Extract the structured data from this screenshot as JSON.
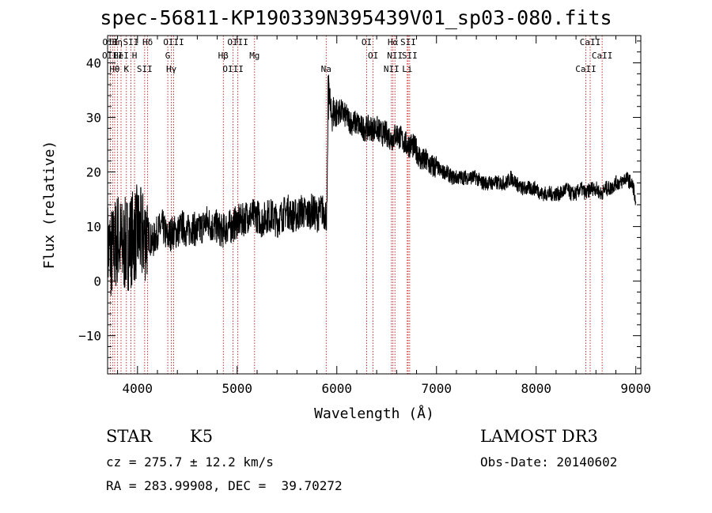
{
  "header": {
    "title": "spec-56811-KP190339N395439V01_sp03-080.fits"
  },
  "info": {
    "object_class": "STAR",
    "subclass": "K5",
    "survey": "LAMOST DR3",
    "cz": "cz = 275.7 ± 12.2 km/s",
    "obs_date": "Obs-Date: 20140602",
    "radec": "RA = 283.99908, DEC =  39.70272"
  },
  "colors": {
    "line": "#000000",
    "marker": "#c00000",
    "background": "#ffffff"
  },
  "chart_data": {
    "type": "line",
    "title": "spec-56811-KP190339N395439V01_sp03-080.fits",
    "xlabel": "Wavelength (Å)",
    "ylabel": "Flux (relative)",
    "xlim": [
      3700,
      9050
    ],
    "ylim": [
      -17,
      45
    ],
    "xticks": [
      4000,
      5000,
      6000,
      7000,
      8000,
      9000
    ],
    "yticks": [
      -10,
      0,
      10,
      20,
      30,
      40
    ],
    "tick_labels_x": [
      "4000",
      "5000",
      "6000",
      "7000",
      "8000",
      "9000"
    ],
    "tick_labels_y": [
      "−10",
      "0",
      "10",
      "20",
      "30",
      "40"
    ],
    "grid": false,
    "series": [
      {
        "x": [
          3700,
          3750,
          3800,
          3850,
          3900,
          3950,
          4000,
          4050,
          4100,
          4150,
          4200,
          4250,
          4300,
          4350,
          4400,
          4450,
          4500,
          4550,
          4600,
          4650,
          4700,
          4750,
          4800,
          4850,
          4900,
          4950,
          5000,
          5050,
          5100,
          5150,
          5200,
          5250,
          5300,
          5350,
          5400,
          5450,
          5500,
          5550,
          5600,
          5650,
          5700,
          5750,
          5800,
          5850,
          5900,
          5920,
          5940,
          5960,
          6000,
          6050,
          6100,
          6150,
          6200,
          6250,
          6300,
          6350,
          6400,
          6450,
          6500,
          6550,
          6600,
          6650,
          6700,
          6750,
          6800,
          6850,
          6900,
          6950,
          7000,
          7050,
          7100,
          7150,
          7200,
          7250,
          7300,
          7350,
          7400,
          7450,
          7500,
          7550,
          7600,
          7650,
          7700,
          7750,
          7800,
          7850,
          7900,
          7950,
          8000,
          8050,
          8100,
          8150,
          8200,
          8250,
          8300,
          8350,
          8400,
          8450,
          8500,
          8550,
          8600,
          8650,
          8700,
          8750,
          8800,
          8850,
          8900,
          8950,
          8980,
          9000
        ],
        "values": [
          6,
          5,
          8,
          6,
          7,
          8,
          9,
          8,
          9,
          7,
          9,
          10,
          8,
          9,
          9,
          10,
          9,
          10,
          9,
          10,
          11,
          10,
          10,
          9,
          10,
          10,
          11,
          11,
          12,
          12,
          12,
          11,
          12,
          12,
          11,
          12,
          13,
          12,
          12,
          13,
          12,
          13,
          12,
          13,
          12,
          37,
          30,
          31,
          31,
          31,
          30,
          29,
          29,
          28,
          28,
          28,
          28,
          27,
          27,
          26,
          27,
          26,
          25,
          25,
          24,
          22,
          22,
          21,
          21,
          20,
          20,
          19,
          19,
          19,
          19,
          19,
          19,
          18,
          18,
          18,
          18,
          18,
          18,
          19,
          18,
          17,
          17,
          17,
          17,
          16,
          16,
          16,
          16,
          16,
          17,
          16,
          16,
          17,
          16,
          17,
          17,
          16,
          17,
          17,
          18,
          18,
          19,
          18,
          17,
          13
        ]
      }
    ],
    "line_markers": [
      {
        "wl": 3727,
        "label": "OII"
      },
      {
        "wl": 3750,
        "label": "OIII"
      },
      {
        "wl": 3771,
        "label": "Hθ"
      },
      {
        "wl": 3798,
        "label": "Hη"
      },
      {
        "wl": 3835,
        "label": "HeI"
      },
      {
        "wl": 3889,
        "label": "K"
      },
      {
        "wl": 3934,
        "label": "SII"
      },
      {
        "wl": 3970,
        "label": "H"
      },
      {
        "wl": 4072,
        "label": "SII"
      },
      {
        "wl": 4102,
        "label": "Hδ"
      },
      {
        "wl": 4304,
        "label": "G"
      },
      {
        "wl": 4340,
        "label": "Hγ"
      },
      {
        "wl": 4363,
        "label": "OIII"
      },
      {
        "wl": 4861,
        "label": "Hβ"
      },
      {
        "wl": 4959,
        "label": "OIII"
      },
      {
        "wl": 5007,
        "label": "OIII"
      },
      {
        "wl": 5175,
        "label": "Mg"
      },
      {
        "wl": 5893,
        "label": "Na"
      },
      {
        "wl": 6300,
        "label": "OI"
      },
      {
        "wl": 6364,
        "label": "OI"
      },
      {
        "wl": 6548,
        "label": "NII"
      },
      {
        "wl": 6563,
        "label": "Hα"
      },
      {
        "wl": 6583,
        "label": "NII"
      },
      {
        "wl": 6707,
        "label": "Li"
      },
      {
        "wl": 6716,
        "label": "SII"
      },
      {
        "wl": 6731,
        "label": "SII"
      },
      {
        "wl": 8498,
        "label": "CaII"
      },
      {
        "wl": 8542,
        "label": "CaII"
      },
      {
        "wl": 8662,
        "label": "CaII"
      }
    ]
  }
}
